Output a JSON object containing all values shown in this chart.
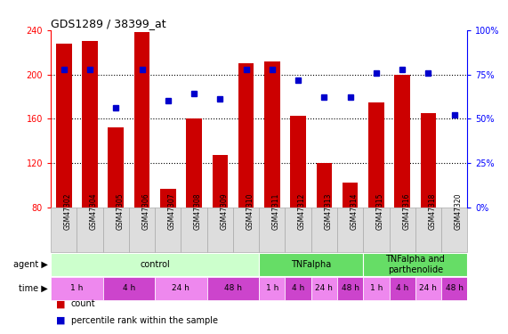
{
  "title": "GDS1289 / 38399_at",
  "samples": [
    "GSM47302",
    "GSM47304",
    "GSM47305",
    "GSM47306",
    "GSM47307",
    "GSM47308",
    "GSM47309",
    "GSM47310",
    "GSM47311",
    "GSM47312",
    "GSM47313",
    "GSM47314",
    "GSM47315",
    "GSM47316",
    "GSM47318",
    "GSM47320"
  ],
  "counts": [
    228,
    230,
    152,
    238,
    97,
    160,
    127,
    210,
    212,
    163,
    120,
    102,
    175,
    200,
    165,
    80
  ],
  "percentiles": [
    78,
    78,
    56,
    78,
    60,
    64,
    61,
    78,
    78,
    72,
    62,
    62,
    76,
    78,
    76,
    52
  ],
  "bar_color": "#cc0000",
  "dot_color": "#0000cc",
  "ylim_left": [
    80,
    240
  ],
  "ylim_right": [
    0,
    100
  ],
  "yticks_left": [
    80,
    120,
    160,
    200,
    240
  ],
  "yticks_right": [
    0,
    25,
    50,
    75,
    100
  ],
  "gridlines": [
    120,
    160,
    200
  ],
  "agent_spans": [
    {
      "label": "control",
      "start": 0,
      "end": 7,
      "color": "#ccffcc"
    },
    {
      "label": "TNFalpha",
      "start": 8,
      "end": 11,
      "color": "#66dd66"
    },
    {
      "label": "TNFalpha and\nparthenolide",
      "start": 12,
      "end": 15,
      "color": "#66dd66"
    }
  ],
  "time_spans": [
    {
      "label": "1 h",
      "start": 0,
      "end": 1,
      "color": "#ee88ee"
    },
    {
      "label": "4 h",
      "start": 2,
      "end": 3,
      "color": "#cc44cc"
    },
    {
      "label": "24 h",
      "start": 4,
      "end": 5,
      "color": "#ee88ee"
    },
    {
      "label": "48 h",
      "start": 6,
      "end": 7,
      "color": "#cc44cc"
    },
    {
      "label": "1 h",
      "start": 8,
      "end": 8,
      "color": "#ee88ee"
    },
    {
      "label": "4 h",
      "start": 9,
      "end": 9,
      "color": "#cc44cc"
    },
    {
      "label": "24 h",
      "start": 10,
      "end": 10,
      "color": "#ee88ee"
    },
    {
      "label": "48 h",
      "start": 11,
      "end": 11,
      "color": "#cc44cc"
    },
    {
      "label": "1 h",
      "start": 12,
      "end": 12,
      "color": "#ee88ee"
    },
    {
      "label": "4 h",
      "start": 13,
      "end": 13,
      "color": "#cc44cc"
    },
    {
      "label": "24 h",
      "start": 14,
      "end": 14,
      "color": "#ee88ee"
    },
    {
      "label": "48 h",
      "start": 15,
      "end": 15,
      "color": "#cc44cc"
    }
  ],
  "sample_box_color": "#dddddd",
  "sample_box_edge": "#aaaaaa",
  "bg_color": "#ffffff"
}
